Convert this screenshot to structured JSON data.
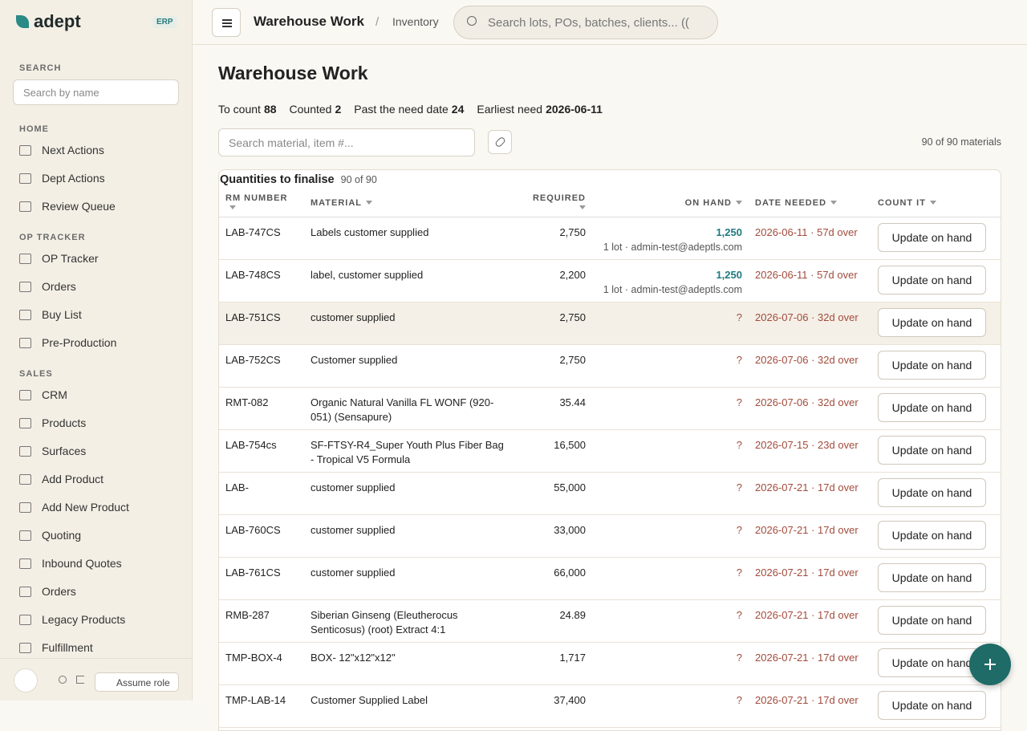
{
  "sidebar": {
    "logo": "adept",
    "badge": "ERP",
    "search_label": "SEARCH",
    "search_placeholder": "Search by name",
    "sections": [
      {
        "title": "HOME",
        "items": [
          "Next Actions",
          "Dept Actions",
          "Review Queue"
        ]
      },
      {
        "title": "OP TRACKER",
        "items": [
          "OP Tracker",
          "Orders",
          "Buy List",
          "Pre-Production"
        ]
      },
      {
        "title": "SALES",
        "items": [
          "CRM",
          "Products",
          "Surfaces",
          "Add Product",
          "Add New Product",
          "Quoting",
          "Inbound Quotes",
          "Orders",
          "Legacy Products",
          "Fulfillment"
        ]
      }
    ],
    "assume_role": "Assume role"
  },
  "topbar": {
    "title": "Warehouse Work",
    "separator": "/",
    "crumb": "Inventory",
    "search_placeholder": "Search lots, POs, batches, clients... (("
  },
  "main": {
    "heading": "Warehouse Work",
    "stats": [
      {
        "label": "To count",
        "value": "88"
      },
      {
        "label": "Counted",
        "value": "2"
      },
      {
        "label": "Past the need date",
        "value": "24"
      },
      {
        "label": "Earliest need",
        "value": "2026-06-11"
      }
    ],
    "filter_placeholder": "Search material, item #...",
    "count": "90 of 90 materials",
    "table": {
      "title": "Quantities to finalise",
      "subtitle": "90 of 90",
      "columns": [
        "RM NUMBER",
        "MATERIAL",
        "REQUIRED",
        "ON HAND",
        "DATE NEEDED",
        "COUNT IT"
      ],
      "rows": [
        {
          "rm": "LAB-747CS",
          "material": "Labels customer supplied",
          "required": "2,750",
          "on_hand": "1,250",
          "note": "1 lot · admin-test@adeptls.com",
          "date": "2026-06-11 · 57d over",
          "action": "Update on hand"
        },
        {
          "rm": "LAB-748CS",
          "material": "label, customer supplied",
          "required": "2,200",
          "on_hand": "1,250",
          "note": "1 lot · admin-test@adeptls.com",
          "date": "2026-06-11 · 57d over",
          "action": "Update on hand"
        },
        {
          "rm": "LAB-751CS",
          "material": "customer supplied",
          "required": "2,750",
          "on_hand": "?",
          "date": "2026-07-06 · 32d over",
          "action": "Update on hand"
        },
        {
          "rm": "LAB-752CS",
          "material": "Customer supplied",
          "required": "2,750",
          "on_hand": "?",
          "date": "2026-07-06 · 32d over",
          "action": "Update on hand"
        },
        {
          "rm": "RMT-082",
          "material": "Organic Natural Vanilla FL WONF (920-051) (Sensapure)",
          "required": "35.44",
          "on_hand": "?",
          "date": "2026-07-06 · 32d over",
          "action": "Update on hand"
        },
        {
          "rm": "LAB-754cs",
          "material": "SF-FTSY-R4_Super Youth Plus Fiber Bag - Tropical V5 Formula",
          "required": "16,500",
          "on_hand": "?",
          "date": "2026-07-15 · 23d over",
          "action": "Update on hand"
        },
        {
          "rm": "LAB-",
          "material": "customer supplied",
          "required": "55,000",
          "on_hand": "?",
          "date": "2026-07-21 · 17d over",
          "action": "Update on hand"
        },
        {
          "rm": "LAB-760CS",
          "material": "customer supplied",
          "required": "33,000",
          "on_hand": "?",
          "date": "2026-07-21 · 17d over",
          "action": "Update on hand"
        },
        {
          "rm": "LAB-761CS",
          "material": "customer supplied",
          "required": "66,000",
          "on_hand": "?",
          "date": "2026-07-21 · 17d over",
          "action": "Update on hand"
        },
        {
          "rm": "RMB-287",
          "material": "Siberian Ginseng (Eleutherocus Senticosus) (root) Extract 4:1",
          "required": "24.89",
          "on_hand": "?",
          "date": "2026-07-21 · 17d over",
          "action": "Update on hand"
        },
        {
          "rm": "TMP-BOX-4",
          "material": "BOX- 12\"x12\"x12\"",
          "required": "1,717",
          "on_hand": "?",
          "date": "2026-07-21 · 17d over",
          "action": "Update on hand"
        },
        {
          "rm": "TMP-LAB-14",
          "material": "Customer Supplied Label",
          "required": "37,400",
          "on_hand": "?",
          "date": "2026-07-21 · 17d over",
          "action": "Update on hand"
        }
      ]
    }
  }
}
